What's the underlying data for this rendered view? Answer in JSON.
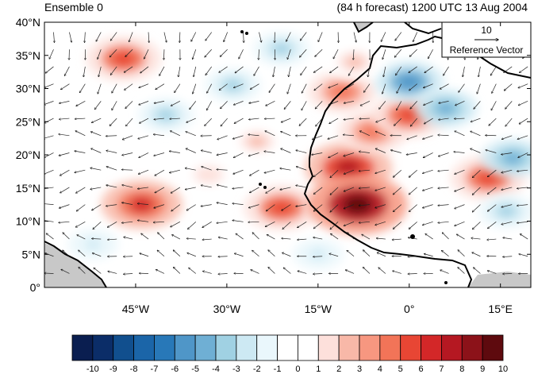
{
  "header": {
    "left_title": "Ensemble 0",
    "right_title": "(84 h forecast) 1200 UTC 13 Aug 2004"
  },
  "map": {
    "extent": {
      "lon": [
        -60,
        20
      ],
      "lat": [
        0,
        40
      ]
    },
    "lat_ticks": [
      "40°N",
      "35°N",
      "30°N",
      "25°N",
      "20°N",
      "15°N",
      "10°N",
      "5°N",
      "0°"
    ],
    "lon_ticks": [
      "45°W",
      "30°W",
      "15°W",
      "0°",
      "15°E"
    ],
    "land_color": "#c8c8c8",
    "field_blobs": [
      {
        "lon": -47,
        "lat": 34.5,
        "v": 6
      },
      {
        "lon": -44,
        "lat": 12.5,
        "v": 7
      },
      {
        "lon": -21,
        "lat": 12,
        "v": 6
      },
      {
        "lon": -10,
        "lat": 18,
        "v": 8
      },
      {
        "lon": -8.5,
        "lat": 12.5,
        "v": 10
      },
      {
        "lon": -6,
        "lat": 23.5,
        "v": 5
      },
      {
        "lon": 0,
        "lat": 26,
        "v": 6
      },
      {
        "lon": 13,
        "lat": 16.5,
        "v": 6
      },
      {
        "lon": -11,
        "lat": 29.5,
        "v": 5
      },
      {
        "lon": -25,
        "lat": 22,
        "v": 3
      },
      {
        "lon": 0,
        "lat": 31,
        "v": -5
      },
      {
        "lon": 6,
        "lat": 27,
        "v": -4
      },
      {
        "lon": -40,
        "lat": 26,
        "v": -3
      },
      {
        "lon": -29,
        "lat": 30.5,
        "v": -3
      },
      {
        "lon": -21,
        "lat": 36,
        "v": -3
      },
      {
        "lon": -52,
        "lat": 6.5,
        "v": -2
      },
      {
        "lon": -15,
        "lat": 5,
        "v": -2
      },
      {
        "lon": 17,
        "lat": 19.5,
        "v": -4
      },
      {
        "lon": 16,
        "lat": 11.5,
        "v": -3
      },
      {
        "lon": -9,
        "lat": 34,
        "v": 3
      },
      {
        "lon": -33,
        "lat": 17,
        "v": 2
      }
    ],
    "reference_vector": {
      "magnitude": "10",
      "label": "Reference Vector"
    }
  },
  "colorbar": {
    "labels": [
      "-10",
      "-9",
      "-8",
      "-7",
      "-6",
      "-5",
      "-4",
      "-3",
      "-2",
      "-1",
      "0",
      "1",
      "2",
      "3",
      "4",
      "5",
      "6",
      "7",
      "8",
      "9",
      "10"
    ],
    "colors": [
      "#0a1e50",
      "#0b2d68",
      "#114f8e",
      "#1b65a8",
      "#2878b8",
      "#4f96c8",
      "#6fafd4",
      "#a0d1e3",
      "#cde9f3",
      "#eaf7fc",
      "#ffffff",
      "#ffffff",
      "#fde0db",
      "#f8b8a8",
      "#f79780",
      "#f27458",
      "#e84634",
      "#d32728",
      "#b51822",
      "#8c1219",
      "#5e0a0e"
    ]
  }
}
